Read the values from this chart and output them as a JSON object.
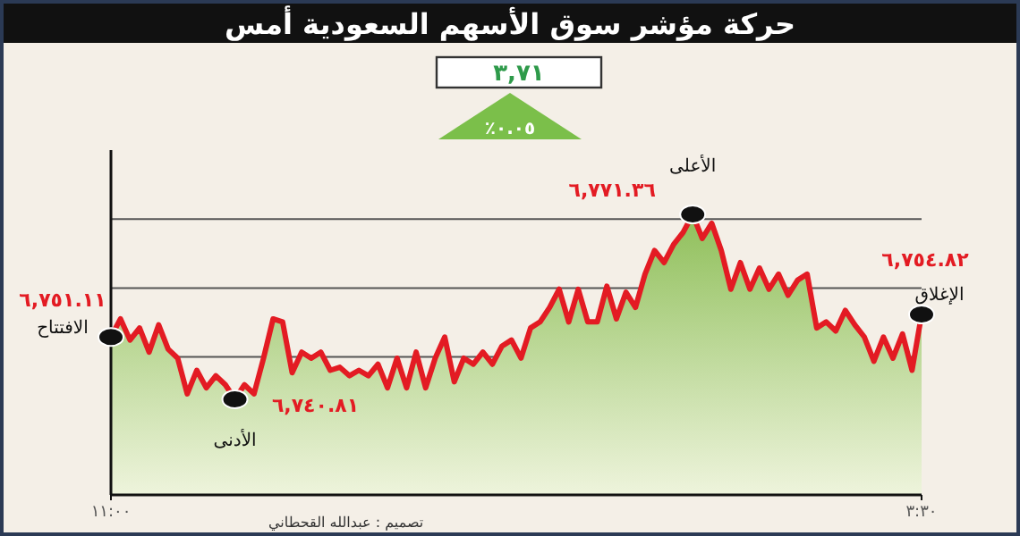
{
  "chart_data": {
    "type": "area",
    "title": "حركة مؤشر سوق الأسهم السعودية أمس",
    "categories": [
      "١١:٠٠",
      null,
      null,
      null,
      null,
      null,
      null,
      null,
      null,
      null,
      null,
      null,
      null,
      null,
      null,
      null,
      null,
      null,
      null,
      null,
      null,
      null,
      null,
      null,
      null,
      null,
      null,
      null,
      null,
      null,
      null,
      null,
      null,
      null,
      null,
      null,
      null,
      null,
      null,
      null,
      null,
      null,
      null,
      null,
      null,
      null,
      null,
      null,
      null,
      null,
      null,
      null,
      null,
      null,
      null,
      null,
      null,
      null,
      null,
      null,
      null,
      null,
      null,
      null,
      null,
      null,
      null,
      null,
      null,
      null,
      null,
      null,
      null,
      null,
      null,
      null,
      null,
      null,
      null,
      null,
      null,
      null,
      null,
      null,
      null,
      "٣:٣٠"
    ],
    "series": [
      {
        "color": "#e31b23",
        "values": [
          6751.11,
          6754.1,
          6750.6,
          6752.6,
          6748.6,
          6753.1,
          6749.1,
          6747.6,
          6741.7,
          6745.6,
          6742.7,
          6744.7,
          6743.2,
          6740.81,
          6743.2,
          6741.7,
          6747.6,
          6754.1,
          6753.6,
          6745.2,
          6748.6,
          6747.6,
          6748.6,
          6745.6,
          6746.1,
          6744.7,
          6745.6,
          6744.7,
          6746.6,
          6742.7,
          6747.6,
          6742.7,
          6748.6,
          6742.7,
          6747.6,
          6751.1,
          6743.7,
          6747.6,
          6746.6,
          6748.6,
          6746.6,
          6749.6,
          6750.6,
          6747.6,
          6752.6,
          6753.6,
          6756.0,
          6759.0,
          6753.6,
          6759.0,
          6753.6,
          6753.6,
          6759.5,
          6754.1,
          6758.5,
          6756.0,
          6761.5,
          6765.4,
          6763.4,
          6766.4,
          6768.4,
          6771.36,
          6767.4,
          6769.9,
          6765.4,
          6759.0,
          6763.4,
          6759.0,
          6762.5,
          6759.0,
          6761.5,
          6758.0,
          6760.5,
          6761.5,
          6752.6,
          6753.6,
          6752.1,
          6755.5,
          6753.1,
          6751.1,
          6747.1,
          6751.1,
          6747.6,
          6751.6,
          6745.6,
          6754.82
        ],
        "value_labels": [
          "٦,٧٥١.١١",
          null,
          null,
          null,
          null,
          null,
          null,
          null,
          null,
          null,
          null,
          null,
          null,
          "٦,٧٤٠.٨١",
          null,
          null,
          null,
          null,
          null,
          null,
          null,
          null,
          null,
          null,
          null,
          null,
          null,
          null,
          null,
          null,
          null,
          null,
          null,
          null,
          null,
          null,
          null,
          null,
          null,
          null,
          null,
          null,
          null,
          null,
          null,
          null,
          null,
          null,
          null,
          null,
          null,
          null,
          null,
          null,
          null,
          null,
          null,
          null,
          null,
          null,
          null,
          "٦,٧٧١.٣٦",
          null,
          null,
          null,
          null,
          null,
          null,
          null,
          null,
          null,
          null,
          null,
          null,
          null,
          null,
          null,
          null,
          null,
          null,
          null,
          null,
          null,
          null,
          null,
          "٦,٧٥٤.٨٢"
        ]
      }
    ],
    "ylim": [
      6725,
      6782
    ],
    "grid": "y",
    "tick_labels": "x",
    "annotations": [
      "٣,٧١",
      "٪٠.٠٥",
      "تصميم : عبدالله القحطاني",
      {
        "text": "الافتتاح",
        "x": "١١:٠٠",
        "y": 6751.11
      },
      {
        "text": "الأدنى",
        "y": 6740.81
      },
      {
        "text": "الأعلى",
        "y": 6771.36
      },
      {
        "text": "الإغلاق",
        "x": "٣:٣٠",
        "y": 6754.82
      }
    ]
  }
}
